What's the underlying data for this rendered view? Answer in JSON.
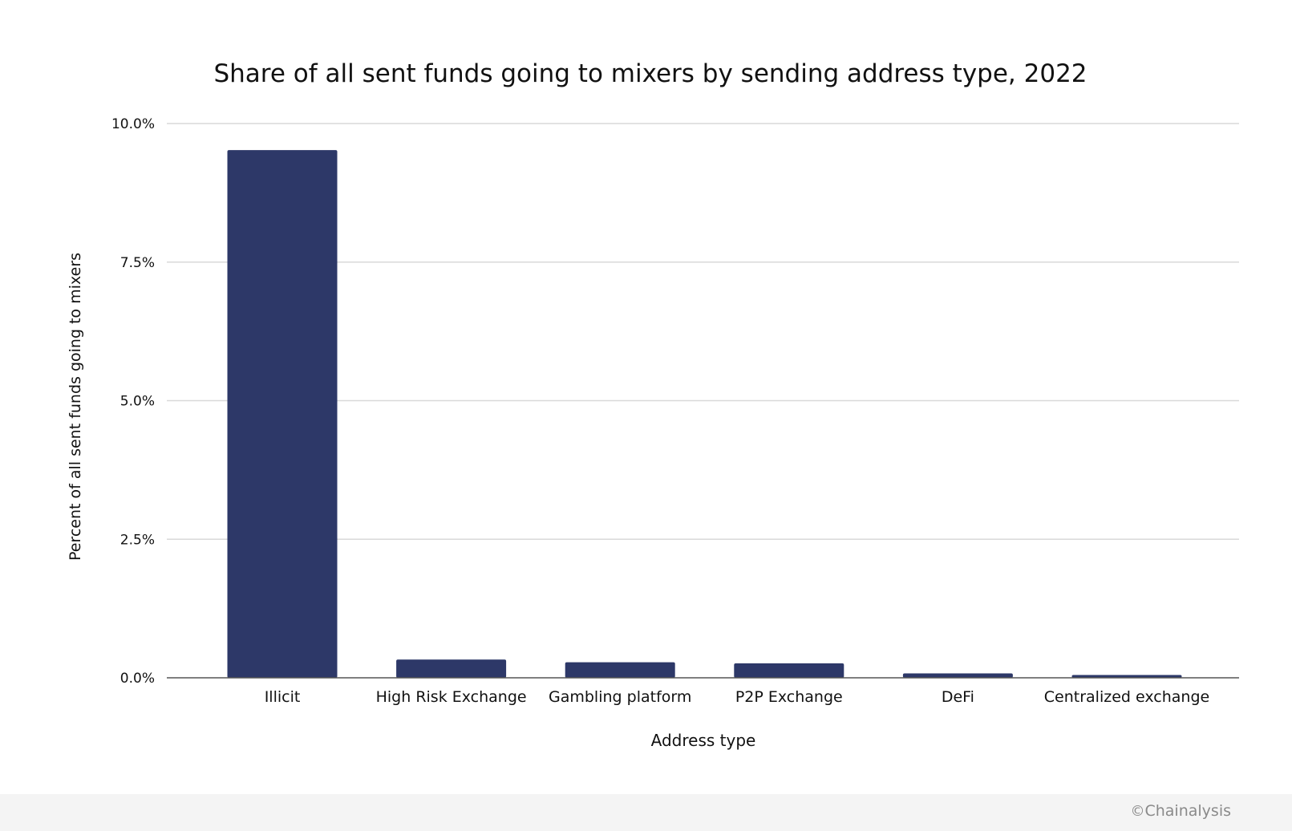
{
  "chart_data": {
    "type": "bar",
    "title": "Share of all sent funds going to mixers by sending address type, 2022",
    "xlabel": "Address type",
    "ylabel": "Percent of all sent funds going to mixers",
    "categories": [
      "Illicit",
      "High Risk Exchange",
      "Gambling platform",
      "P2P Exchange",
      "DeFi",
      "Centralized exchange"
    ],
    "values": [
      9.52,
      0.33,
      0.28,
      0.26,
      0.08,
      0.05
    ],
    "ylim": [
      0,
      10
    ],
    "yticks": [
      0,
      2.5,
      5,
      7.5,
      10
    ],
    "ytick_labels": [
      "0.0%",
      "2.5%",
      "5.0%",
      "7.5%",
      "10.0%"
    ],
    "grid": true,
    "bar_color": "#2d3868"
  },
  "footer": {
    "copyright_symbol": "©",
    "credit": "Chainalysis"
  }
}
